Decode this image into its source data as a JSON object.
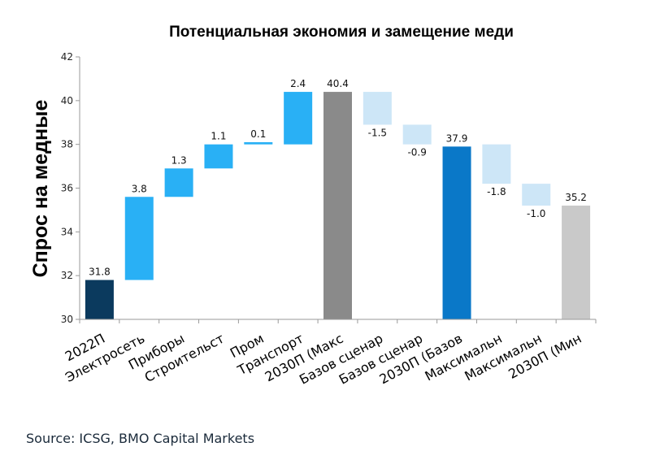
{
  "chart_data": {
    "type": "waterfall",
    "title": "Потенциальная экономия и замещение меди",
    "ylabel": "Спрос на медные",
    "xlabel": "",
    "ylim": [
      30,
      42
    ],
    "yticks": [
      30,
      32,
      34,
      36,
      38,
      40,
      42
    ],
    "grid": false,
    "categories": [
      "2022П",
      "Электросеть",
      "Приборы",
      "Строительст",
      "Пром",
      "Транспорт",
      "2030П (Макс",
      "Базов сценар",
      "Базов сценар",
      "2030П (Базов",
      "Максимальн",
      "Максимальн",
      "2030П (Мин"
    ],
    "bars": [
      {
        "kind": "total",
        "start": 30,
        "end": 31.8,
        "label": "31.8",
        "color": "#0b3a5e"
      },
      {
        "kind": "increase",
        "start": 31.8,
        "end": 35.6,
        "label": "3.8",
        "color": "#29b0f5"
      },
      {
        "kind": "increase",
        "start": 35.6,
        "end": 36.9,
        "label": "1.3",
        "color": "#29b0f5"
      },
      {
        "kind": "increase",
        "start": 36.9,
        "end": 38.0,
        "label": "1.1",
        "color": "#29b0f5"
      },
      {
        "kind": "increase",
        "start": 38.0,
        "end": 38.1,
        "label": "0.1",
        "color": "#29b0f5"
      },
      {
        "kind": "increase",
        "start": 38.0,
        "end": 40.4,
        "label": "2.4",
        "color": "#29b0f5"
      },
      {
        "kind": "total",
        "start": 30,
        "end": 40.4,
        "label": "40.4",
        "color": "#8a8a8a"
      },
      {
        "kind": "decrease",
        "start": 40.4,
        "end": 38.9,
        "label": "-1.5",
        "color": "#cde6f7"
      },
      {
        "kind": "decrease",
        "start": 38.9,
        "end": 38.0,
        "label": "-0.9",
        "color": "#cde6f7"
      },
      {
        "kind": "total",
        "start": 30,
        "end": 37.9,
        "label": "37.9",
        "color": "#0a78c8"
      },
      {
        "kind": "decrease",
        "start": 38.0,
        "end": 36.2,
        "label": "-1.8",
        "color": "#cde6f7"
      },
      {
        "kind": "decrease",
        "start": 36.2,
        "end": 35.2,
        "label": "-1.0",
        "color": "#cde6f7"
      },
      {
        "kind": "total",
        "start": 30,
        "end": 35.2,
        "label": "35.2",
        "color": "#c9c9c9"
      }
    ]
  },
  "source": "Source: ICSG, BMO Capital Markets"
}
